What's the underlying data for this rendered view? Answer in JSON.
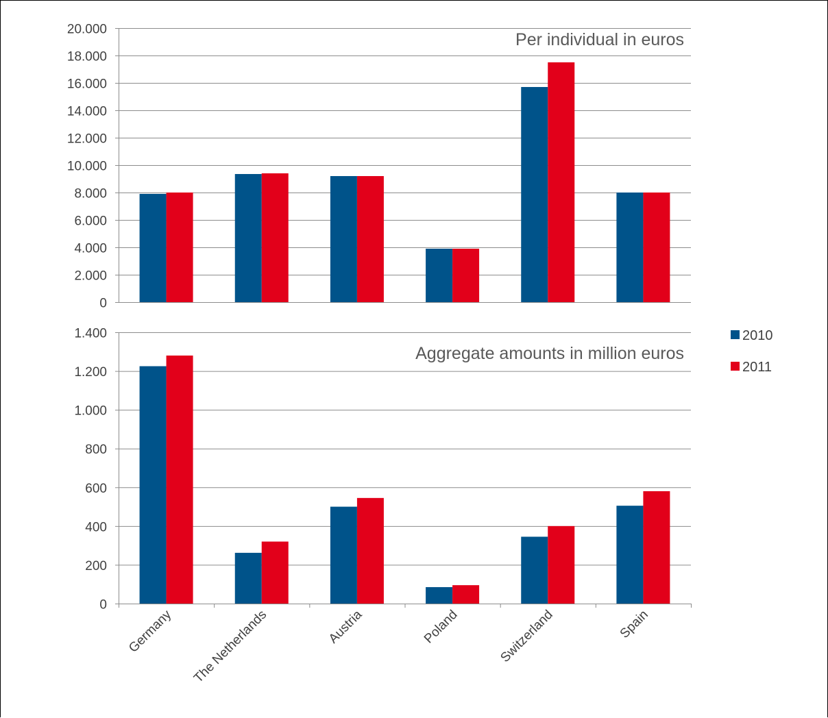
{
  "chart_data": [
    {
      "type": "bar",
      "title": "Per individual in euros",
      "categories": [
        "Germany",
        "The Netherlands",
        "Austria",
        "Poland",
        "Switzerland",
        "Spain"
      ],
      "series": [
        {
          "name": "2010",
          "values": [
            7900,
            9350,
            9200,
            3900,
            15700,
            8000
          ]
        },
        {
          "name": "2011",
          "values": [
            8000,
            9400,
            9200,
            3900,
            17500,
            8000
          ]
        }
      ],
      "ylim": [
        0,
        20000
      ],
      "yticks": [
        0,
        2000,
        4000,
        6000,
        8000,
        10000,
        12000,
        14000,
        16000,
        18000,
        20000
      ],
      "ytick_labels": [
        "0",
        "2.000",
        "4.000",
        "6.000",
        "8.000",
        "10.000",
        "12.000",
        "14.000",
        "16.000",
        "18.000",
        "20.000"
      ],
      "grid": true
    },
    {
      "type": "bar",
      "title": "Aggregate amounts in million euros",
      "categories": [
        "Germany",
        "The Netherlands",
        "Austria",
        "Poland",
        "Switzerland",
        "Spain"
      ],
      "series": [
        {
          "name": "2010",
          "values": [
            1225,
            262,
            500,
            85,
            345,
            505
          ]
        },
        {
          "name": "2011",
          "values": [
            1280,
            320,
            545,
            95,
            400,
            580
          ]
        }
      ],
      "ylim": [
        0,
        1400
      ],
      "yticks": [
        0,
        200,
        400,
        600,
        800,
        1000,
        1200,
        1400
      ],
      "ytick_labels": [
        "0",
        "200",
        "400",
        "600",
        "800",
        "1.000",
        "1.200",
        "1.400"
      ],
      "grid": true
    }
  ],
  "legend": {
    "position": "right",
    "items": [
      {
        "label": "2010",
        "color": "#00538a"
      },
      {
        "label": "2011",
        "color": "#e2001a"
      }
    ]
  },
  "colors": {
    "2010": "#00538a",
    "2011": "#e2001a"
  }
}
